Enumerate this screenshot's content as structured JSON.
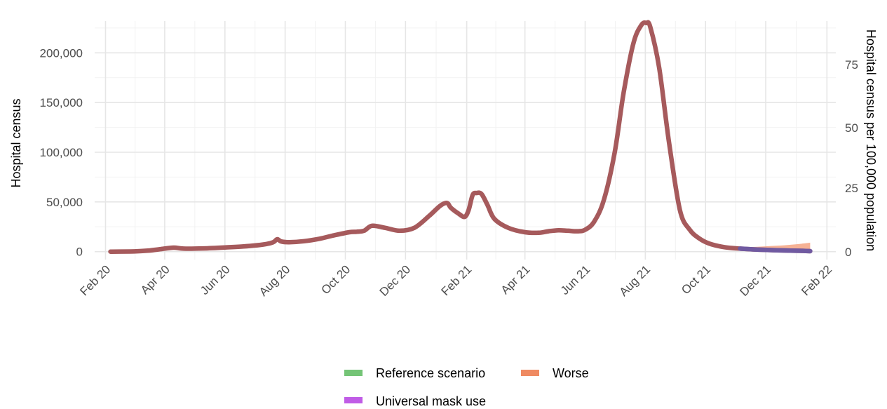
{
  "chart_data": {
    "type": "line",
    "ylabel": "Hospital census",
    "ylabel_right": "Hospital census per 100,000 population",
    "x_ticks": [
      "Feb 20",
      "Apr 20",
      "Jun 20",
      "Aug 20",
      "Oct 20",
      "Dec 20",
      "Feb 21",
      "Apr 21",
      "Jun 21",
      "Aug 21",
      "Oct 21",
      "Dec 21",
      "Feb 22"
    ],
    "xlim": [
      "2020-01-21",
      "2022-02-10"
    ],
    "ylim": [
      -8000,
      232000
    ],
    "y_ticks": [
      0,
      50000,
      100000,
      150000,
      200000
    ],
    "y_tick_labels": [
      "0",
      "50,000",
      "100,000",
      "150,000",
      "200,000"
    ],
    "y_ticks_right": [
      0,
      25,
      50,
      75
    ],
    "y_ticks_right_labels": [
      "0",
      "25",
      "50",
      "75"
    ],
    "grid": true,
    "legend_position": "bottom",
    "colors": {
      "reference": "#a65a5c",
      "worse_band": "#f4a582",
      "mask_band": "#6a5aa8",
      "legend_reference": "#74c476",
      "legend_worse": "#ef8a62",
      "legend_mask": "#c05ce6"
    },
    "series": [
      {
        "name": "Reference scenario",
        "x": [
          "2020-02-06",
          "2020-03-01",
          "2020-03-15",
          "2020-03-28",
          "2020-04-10",
          "2020-04-20",
          "2020-05-10",
          "2020-06-01",
          "2020-06-20",
          "2020-07-10",
          "2020-07-20",
          "2020-07-24",
          "2020-07-28",
          "2020-08-05",
          "2020-08-20",
          "2020-09-05",
          "2020-09-20",
          "2020-10-05",
          "2020-10-13",
          "2020-10-20",
          "2020-10-28",
          "2020-11-10",
          "2020-11-25",
          "2020-12-10",
          "2020-12-25",
          "2021-01-05",
          "2021-01-12",
          "2021-01-16",
          "2021-01-24",
          "2021-01-30",
          "2021-02-03",
          "2021-02-07",
          "2021-02-11",
          "2021-02-16",
          "2021-02-22",
          "2021-03-01",
          "2021-03-15",
          "2021-04-01",
          "2021-04-15",
          "2021-04-25",
          "2021-05-05",
          "2021-05-15",
          "2021-05-25",
          "2021-06-01",
          "2021-06-10",
          "2021-06-20",
          "2021-07-01",
          "2021-07-10",
          "2021-07-20",
          "2021-07-28",
          "2021-08-02",
          "2021-08-06",
          "2021-08-15",
          "2021-08-25",
          "2021-09-05",
          "2021-09-15",
          "2021-09-25",
          "2021-10-05",
          "2021-10-20",
          "2021-11-05",
          "2021-11-20",
          "2021-12-05",
          "2021-12-20",
          "2022-01-05",
          "2022-01-15"
        ],
        "y": [
          0,
          200,
          1000,
          2500,
          4000,
          3000,
          3200,
          4200,
          5200,
          7200,
          9500,
          12500,
          10200,
          9500,
          10500,
          13000,
          16500,
          19500,
          20000,
          21000,
          26000,
          24000,
          21000,
          24000,
          36000,
          46000,
          49000,
          44000,
          38000,
          35000,
          42000,
          57000,
          59000,
          58000,
          47000,
          33000,
          24000,
          19500,
          19000,
          20500,
          21500,
          21000,
          20500,
          22000,
          30000,
          52000,
          100000,
          160000,
          210000,
          228000,
          230000,
          226000,
          185000,
          110000,
          42000,
          22000,
          13000,
          8000,
          4500,
          3000,
          2200,
          1600,
          1200,
          800,
          500
        ]
      },
      {
        "name": "Worse",
        "x": [
          "2021-11-05",
          "2021-11-20",
          "2021-12-05",
          "2021-12-20",
          "2022-01-05",
          "2022-01-15"
        ],
        "y": [
          4500,
          4800,
          5600,
          6400,
          7800,
          9000
        ]
      },
      {
        "name": "Universal mask use",
        "x": [
          "2021-11-05",
          "2021-11-20",
          "2021-12-05",
          "2021-12-20",
          "2022-01-05",
          "2022-01-15"
        ],
        "y": [
          3000,
          2200,
          1600,
          1200,
          800,
          500
        ]
      }
    ]
  }
}
